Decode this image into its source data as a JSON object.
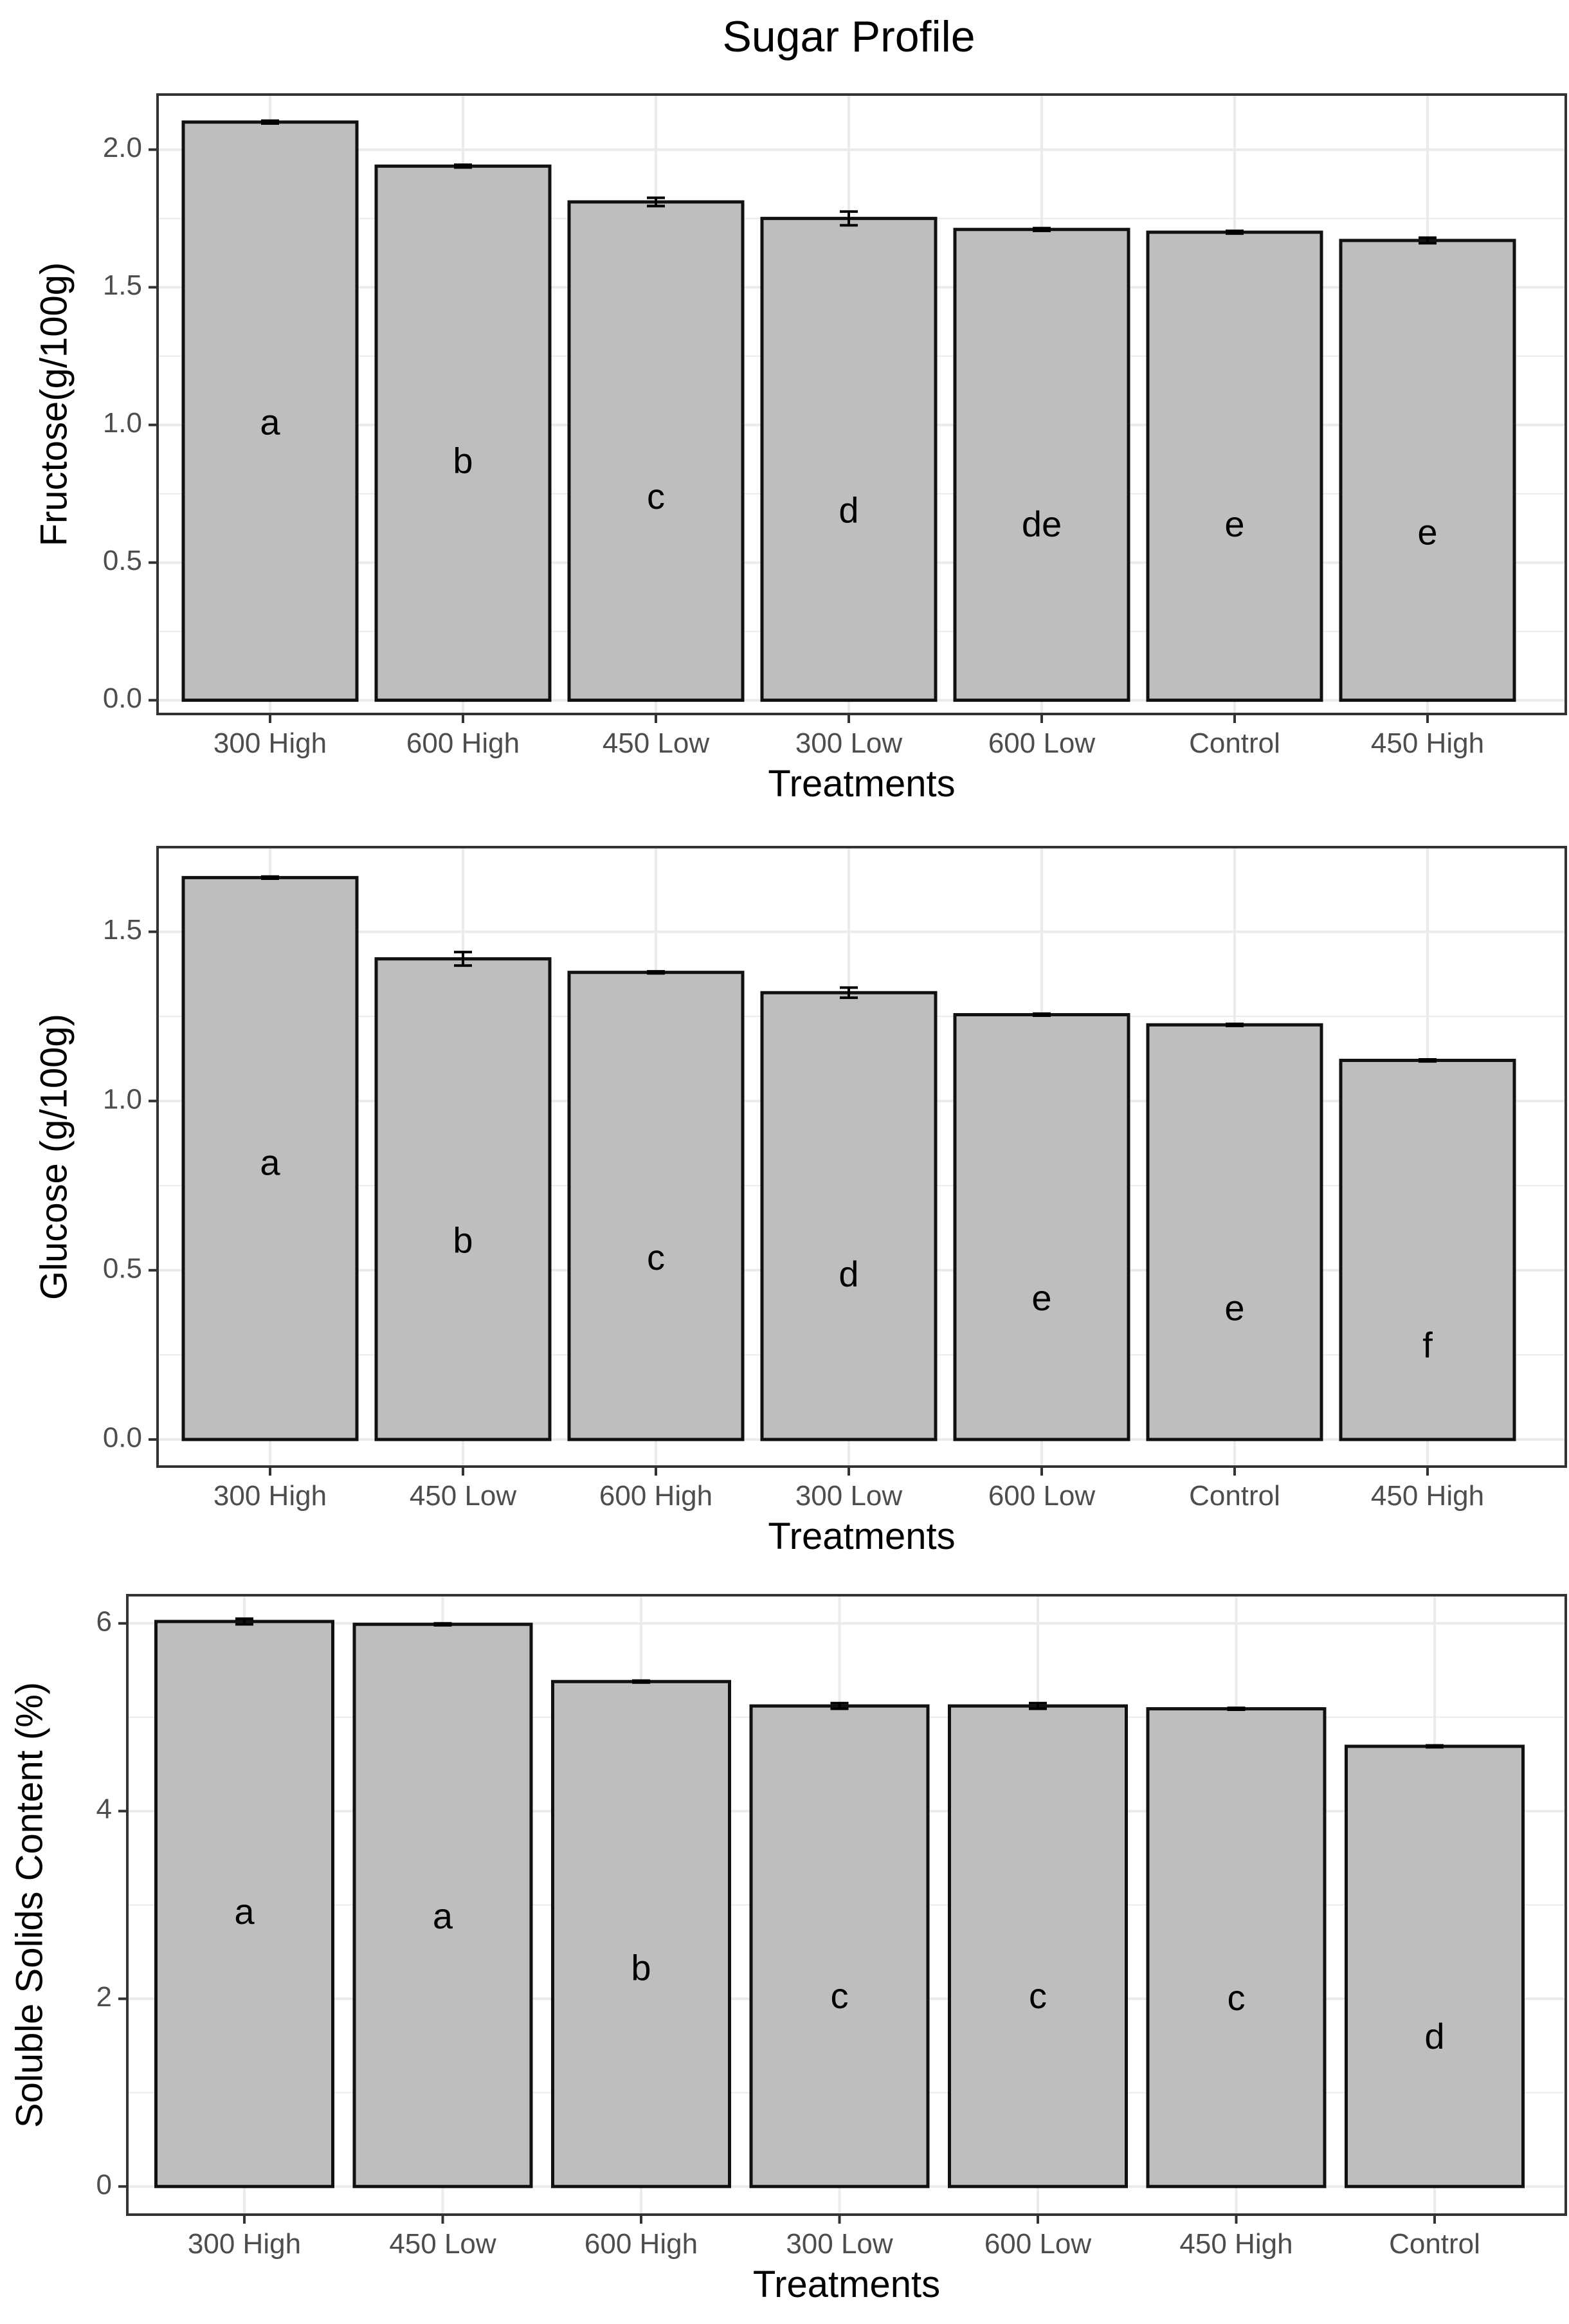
{
  "figure_title": "Sugar Profile",
  "colors": {
    "bar_fill": "#bebebe",
    "bar_stroke": "#111111",
    "grid": "#ebebeb",
    "panel_border": "#333333",
    "text": "#000000",
    "tick_text": "#4d4d4d"
  },
  "chart_data": [
    {
      "type": "bar",
      "title": "",
      "xlabel": "Treatments",
      "ylabel": "Fructose(g/100g)",
      "ylim": [
        -0.05,
        2.2
      ],
      "yticks": [
        0.0,
        0.5,
        1.0,
        1.5,
        2.0
      ],
      "ytick_labels": [
        "0.0",
        "0.5",
        "1.0",
        "1.5",
        "2.0"
      ],
      "grid": true,
      "categories": [
        "300 High",
        "600 High",
        "450 Low",
        "300 Low",
        "600 Low",
        "Control",
        "450 High"
      ],
      "values": [
        2.1,
        1.94,
        1.81,
        1.75,
        1.71,
        1.7,
        1.67
      ],
      "errors": [
        0.005,
        0.005,
        0.015,
        0.025,
        0.005,
        0.005,
        0.01
      ],
      "letters": [
        "a",
        "b",
        "c",
        "d",
        "de",
        "e",
        "e"
      ],
      "letter_y": [
        1.0,
        0.86,
        0.73,
        0.68,
        0.63,
        0.63,
        0.6
      ]
    },
    {
      "type": "bar",
      "title": "",
      "xlabel": "Treatments",
      "ylabel": "Glucose (g/100g)",
      "ylim": [
        -0.08,
        1.75
      ],
      "yticks": [
        0.0,
        0.5,
        1.0,
        1.5
      ],
      "ytick_labels": [
        "0.0",
        "0.5",
        "1.0",
        "1.5"
      ],
      "grid": true,
      "categories": [
        "300 High",
        "450 Low",
        "600 High",
        "300 Low",
        "600 Low",
        "Control",
        "450 High"
      ],
      "values": [
        1.66,
        1.42,
        1.38,
        1.32,
        1.255,
        1.225,
        1.12
      ],
      "errors": [
        0.003,
        0.02,
        0.003,
        0.015,
        0.003,
        0.003,
        0.003
      ],
      "letters": [
        "a",
        "b",
        "c",
        "d",
        "e",
        "e",
        "f"
      ],
      "letter_y": [
        0.81,
        0.58,
        0.53,
        0.48,
        0.41,
        0.38,
        0.27
      ]
    },
    {
      "type": "bar",
      "title": "",
      "xlabel": "Treatments",
      "ylabel": "Soluble Solids Content (%)",
      "ylim": [
        -0.3,
        6.3
      ],
      "yticks": [
        0,
        2,
        4,
        6
      ],
      "ytick_labels": [
        "0",
        "2",
        "4",
        "6"
      ],
      "grid": true,
      "categories": [
        "300 High",
        "450 Low",
        "600 High",
        "300 Low",
        "600 Low",
        "450 High",
        "Control"
      ],
      "values": [
        6.02,
        5.99,
        5.38,
        5.12,
        5.12,
        5.09,
        4.69
      ],
      "errors": [
        0.03,
        0.01,
        0.01,
        0.03,
        0.03,
        0.01,
        0.01
      ],
      "letters": [
        "a",
        "a",
        "b",
        "c",
        "c",
        "c",
        "d"
      ],
      "letter_y": [
        2.9,
        2.85,
        2.3,
        2.0,
        2.0,
        1.98,
        1.57
      ]
    }
  ]
}
